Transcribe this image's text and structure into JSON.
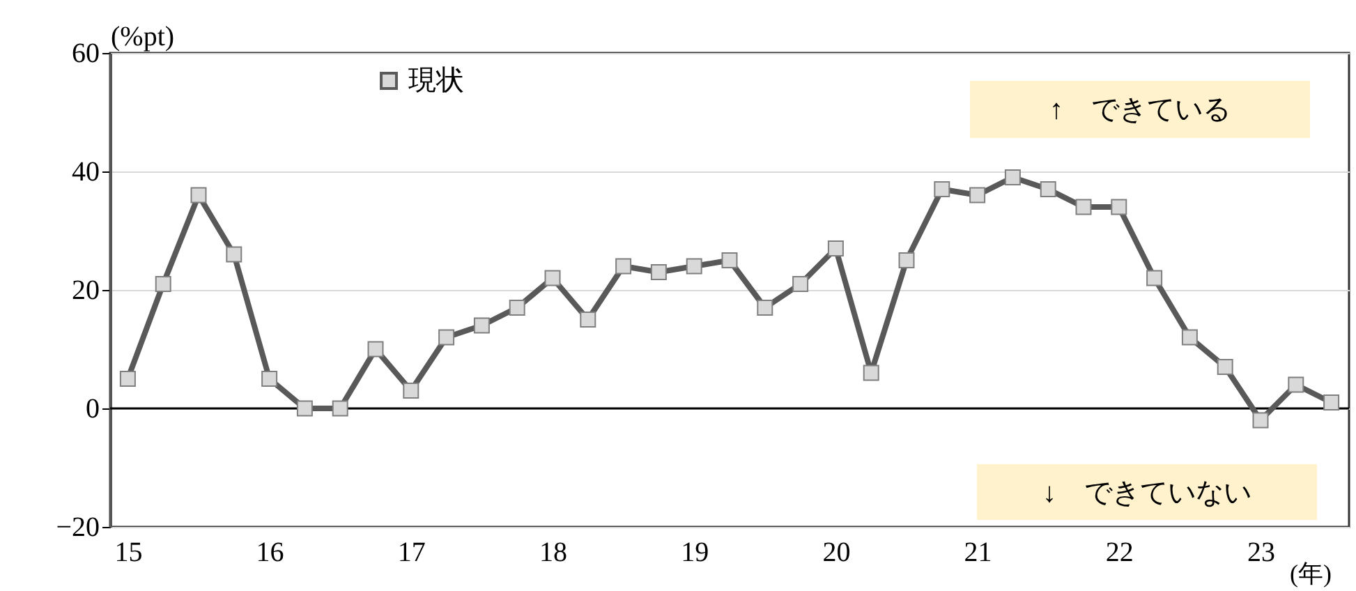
{
  "chart_data": {
    "type": "line",
    "ylabel": "(%pt)",
    "xlabel": "(年)",
    "categories": [
      "15",
      null,
      null,
      null,
      "16",
      null,
      null,
      null,
      "17",
      null,
      null,
      null,
      "18",
      null,
      null,
      null,
      "19",
      null,
      null,
      null,
      "20",
      null,
      null,
      null,
      "21",
      null,
      null,
      null,
      "22",
      null,
      null,
      null,
      "23",
      null,
      null
    ],
    "series": [
      {
        "name": "現状",
        "color": "#595959",
        "values": [
          5,
          21,
          36,
          26,
          5,
          0,
          0,
          10,
          3,
          12,
          14,
          17,
          22,
          15,
          24,
          23,
          24,
          25,
          17,
          21,
          27,
          6,
          25,
          37,
          36,
          39,
          37,
          34,
          34,
          22,
          12,
          7,
          -2,
          4,
          1
        ]
      }
    ],
    "ylim": [
      -20,
      60
    ],
    "yticks": [
      -20,
      0,
      20,
      40,
      60
    ],
    "grid": "y",
    "legend": "top left",
    "marker": "square",
    "line_style": "solid",
    "ref_lines": [
      {
        "axis": "y",
        "value": 0,
        "color": "#000000"
      }
    ],
    "annotations": [
      "↑　できている",
      "↓　できていない"
    ]
  }
}
